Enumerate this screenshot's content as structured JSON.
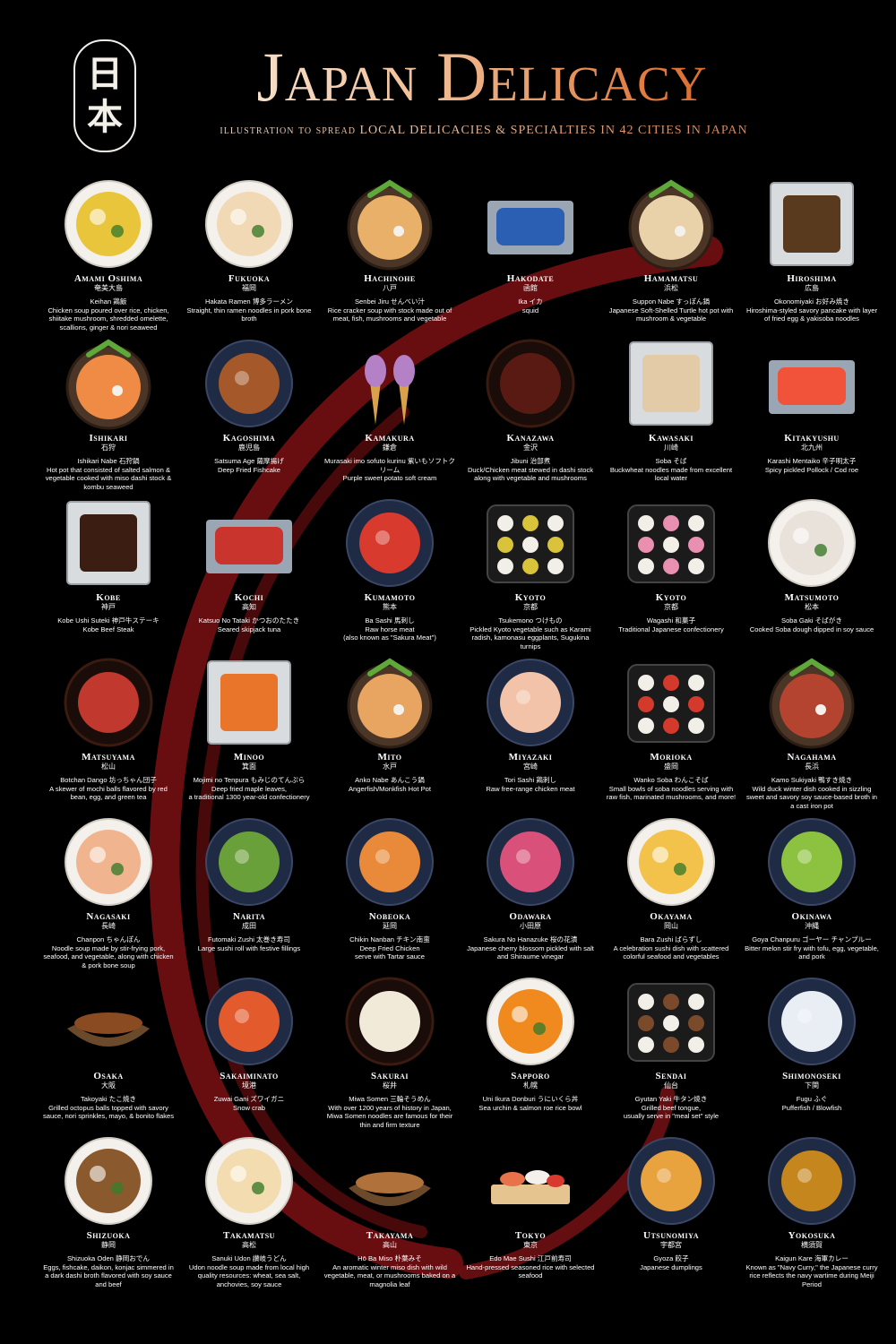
{
  "header": {
    "seal": [
      "日",
      "本"
    ],
    "title": "Japan Delicacy",
    "subtitle": "illustration to spread LOCAL DELICACIES & SPECIALTIES IN 42 CITIES IN JAPAN"
  },
  "colors": {
    "background": "#000000",
    "swirl": "#6e0f12",
    "title_start": "#fbf3ea",
    "title_end": "#c65620"
  },
  "dishes": [
    {
      "city": "Amami Oshima",
      "kanji": "奄美大島",
      "desc": "Keihan 鶏飯\nChicken soup poured over rice, chicken, shiitake mushroom, shredded omelette, scallions, ginger & nori seaweed",
      "style": "bowl",
      "color": "#e8c53a"
    },
    {
      "city": "Fukuoka",
      "kanji": "福岡",
      "desc": "Hakata Ramen 博多ラーメン\nStraight, thin ramen noodles in pork bone broth",
      "style": "bowl",
      "color": "#f2d9b5"
    },
    {
      "city": "Hachinohe",
      "kanji": "八戸",
      "desc": "Senbei Jiru せんべい汁\nRice cracker soup with stock made out of meat, fish, mushrooms and vegetable",
      "style": "pot",
      "color": "#e9b06a"
    },
    {
      "city": "Hakodate",
      "kanji": "函館",
      "desc": "Ika イカ\nsquid",
      "style": "slab",
      "color": "#2b5fb3"
    },
    {
      "city": "Hamamatsu",
      "kanji": "浜松",
      "desc": "Suppon Nabe すっぽん鍋\nJapanese Soft-Shelled Turtle hot pot with mushroom & vegetable",
      "style": "pot",
      "color": "#e9d2a9"
    },
    {
      "city": "Hiroshima",
      "kanji": "広島",
      "desc": "Okonomiyaki お好み焼き\nHiroshima-styled savory pancake with layer of fried egg & yakisoba noodles",
      "style": "square",
      "color": "#5a3a1e"
    },
    {
      "city": "Ishikari",
      "kanji": "石狩",
      "desc": "Ishikari Nabe 石狩鍋\nHot pot that consisted of salted salmon & vegetable cooked with miso dashi stock & kombu seaweed",
      "style": "pot",
      "color": "#f08b45"
    },
    {
      "city": "Kagoshima",
      "kanji": "鹿児島",
      "desc": "Satsuma Age 薩摩揚げ\nDeep Fried Fishcake",
      "style": "plate",
      "color": "#a5582a"
    },
    {
      "city": "Kamakura",
      "kanji": "鎌倉",
      "desc": "Murasaki imo sofuto kurinu 紫いもソフトクリーム\nPurple sweet potato soft cream",
      "style": "cone",
      "color": "#b481c6"
    },
    {
      "city": "Kanazawa",
      "kanji": "金沢",
      "desc": "Jibuni 治部煮\nDuck/Chicken meat stewed in dashi stock along with vegetable and mushrooms",
      "style": "lacquer",
      "color": "#5a1a14"
    },
    {
      "city": "Kawasaki",
      "kanji": "川崎",
      "desc": "Soba そば\nBuckwheat noodles made from excellent local water",
      "style": "square",
      "color": "#e2cba6"
    },
    {
      "city": "Kitakyushu",
      "kanji": "北九州",
      "desc": "Karashi Mentaiko 辛子明太子\nSpicy pickled Pollock / Cod roe",
      "style": "slab",
      "color": "#f0523a"
    },
    {
      "city": "Kobe",
      "kanji": "神戸",
      "desc": "Kobe Ushi Suteki 神戸牛ステーキ\nKobe Beef Steak",
      "style": "square",
      "color": "#3b1d12"
    },
    {
      "city": "Kochi",
      "kanji": "高知",
      "desc": "Katsuo No Tataki かつおのたたき\nSeared skipjack tuna",
      "style": "slab",
      "color": "#c9342d"
    },
    {
      "city": "Kumamoto",
      "kanji": "熊本",
      "desc": "Ba Sashi 馬刺し\nRaw horse meat\n(also known as \"Sakura Meat\")",
      "style": "plate",
      "color": "#d83a2e"
    },
    {
      "city": "Kyoto",
      "kanji": "京都",
      "desc": "Tsukemono つけもの\nPickled Kyoto vegetable such as Karami radish, kamonasu eggplants, Sugukina turnips",
      "style": "tray",
      "color": "#d9c33a"
    },
    {
      "city": "Kyoto",
      "kanji": "京都",
      "desc": "Wagashi 和菓子\nTraditional Japanese confectionery",
      "style": "tray",
      "color": "#e98fb0"
    },
    {
      "city": "Matsumoto",
      "kanji": "松本",
      "desc": "Soba Gaki そばがき\nCooked Soba dough dipped in soy sauce",
      "style": "bowl",
      "color": "#e8e2da"
    },
    {
      "city": "Matsuyama",
      "kanji": "松山",
      "desc": "Botchan Dango 坊っちゃん団子\nA skewer of mochi balls flavored by red bean, egg, and green tea",
      "style": "lacquer",
      "color": "#c0382e"
    },
    {
      "city": "Minoo",
      "kanji": "箕面",
      "desc": "Mojimi no Tenpura もみじのてんぷら\nDeep fried maple leaves,\na traditional 1300 year-old confectionery",
      "style": "square",
      "color": "#e8752a"
    },
    {
      "city": "Mito",
      "kanji": "水戸",
      "desc": "Anko Nabe あんこう鍋\nAngerfish/Monkfish Hot Pot",
      "style": "pot",
      "color": "#e8a562"
    },
    {
      "city": "Miyazaki",
      "kanji": "宮崎",
      "desc": "Tori Sashi 鶏刺し\nRaw free-range chicken meat",
      "style": "plate",
      "color": "#f2c3a8"
    },
    {
      "city": "Morioka",
      "kanji": "盛岡",
      "desc": "Wanko Soba わんこそば\nSmall bowls of soba noodles serving with raw fish, marinated mushrooms, and more!",
      "style": "tray",
      "color": "#d43a2c"
    },
    {
      "city": "Nagahama",
      "kanji": "長浜",
      "desc": "Kamo Sukiyaki 鴨すき焼き\nWild duck winter dish cooked in sizzling sweet and savory soy sauce-based broth in a cast iron pot",
      "style": "pot",
      "color": "#b44430"
    },
    {
      "city": "Nagasaki",
      "kanji": "長崎",
      "desc": "Chanpon ちゃんぽん\nNoodle soup made by stir-frying pork, seafood, and vegetable, along with chicken & pork bone soup",
      "style": "bowl",
      "color": "#f0b58f"
    },
    {
      "city": "Narita",
      "kanji": "成田",
      "desc": "Futomaki Zushi 太巻き寿司\nLarge sushi roll with festive fillings",
      "style": "plate",
      "color": "#6aa03a"
    },
    {
      "city": "Nobeoka",
      "kanji": "延岡",
      "desc": "Chikin Nanban チキン南蛮\nDeep Fried Chicken\nserve with Tartar sauce",
      "style": "plate",
      "color": "#e98a3a"
    },
    {
      "city": "Odawara",
      "kanji": "小田原",
      "desc": "Sakura No Hanazuke 桜の花漬\nJapanese cherry blossom pickled with salt and Shiraume vinegar",
      "style": "plate",
      "color": "#d9517a"
    },
    {
      "city": "Okayama",
      "kanji": "岡山",
      "desc": "Bara Zushi ばらずし\nA celebration sushi dish with scattered colorful seafood and vegetables",
      "style": "bowl",
      "color": "#f2c24a"
    },
    {
      "city": "Okinawa",
      "kanji": "沖縄",
      "desc": "Goya Chanpuru ゴーヤー チャンプルー\nBitter melon stir fry with tofu, egg, vegetable, and pork",
      "style": "plate",
      "color": "#8cc23f"
    },
    {
      "city": "Osaka",
      "kanji": "大阪",
      "desc": "Takoyaki たこ焼き\nGrilled octopus balls topped with savory sauce, nori sprinkles, mayo, & bonito flakes",
      "style": "boat",
      "color": "#8a4b22"
    },
    {
      "city": "Sakaiminato",
      "kanji": "境港",
      "desc": "Zuwai Gani ズワイガニ\nSnow crab",
      "style": "plate",
      "color": "#e35a2c"
    },
    {
      "city": "Sakurai",
      "kanji": "桜井",
      "desc": "Miwa Somen 三輪そうめん\nWith over 1200 years of history in Japan, Miwa Somen noodles are famous for their thin and firm texture",
      "style": "lacquer",
      "color": "#f1ead9"
    },
    {
      "city": "Sapporo",
      "kanji": "札幌",
      "desc": "Uni Ikura Donburi うにいくら丼\nSea urchin & salmon roe rice bowl",
      "style": "bowl",
      "color": "#f08a1e"
    },
    {
      "city": "Sendai",
      "kanji": "仙台",
      "desc": "Gyutan Yaki 牛タン焼き\nGrilled beef tongue,\nusually serve in \"meal set\" style",
      "style": "tray",
      "color": "#7a4a2a"
    },
    {
      "city": "Shimonoseki",
      "kanji": "下関",
      "desc": "Fugu ふぐ\nPufferfish / Blowfish",
      "style": "plate",
      "color": "#e9eef5"
    },
    {
      "city": "Shizuoka",
      "kanji": "静岡",
      "desc": "Shizuoka Oden 静岡おでん\nEggs, fishcake, daikon, konjac simmered in a dark dashi broth flavored with soy sauce and beef",
      "style": "bowl",
      "color": "#8a5a2e"
    },
    {
      "city": "Takamatsu",
      "kanji": "高松",
      "desc": "Sanuki Udon 讃岐うどん\nUdon noodle soup made from local high quality resources: wheat, sea salt, anchovies, soy sauce",
      "style": "bowl",
      "color": "#f2dcb0"
    },
    {
      "city": "Takayama",
      "kanji": "高山",
      "desc": "Hō Ba Miso 朴葉みそ\nAn aromatic winter miso dish with wild vegetable, meat, or mushrooms baked on a magnolia leaf",
      "style": "boat",
      "color": "#b0713a"
    },
    {
      "city": "Tokyo",
      "kanji": "東京",
      "desc": "Edo Mae Sushi 江戸前寿司\nHand-pressed seasoned rice with selected seafood",
      "style": "board",
      "color": "#e8734a"
    },
    {
      "city": "Utsunomiya",
      "kanji": "宇都宮",
      "desc": "Gyoza 餃子\nJapanese dumplings",
      "style": "plate",
      "color": "#e8a23e"
    },
    {
      "city": "Yokosuka",
      "kanji": "横須賀",
      "desc": "Kaigun Kare 海軍カレー\nKnown as \"Navy Curry,\" the Japanese curry rice reflects the navy wartime during Meiji Period",
      "style": "plate",
      "color": "#c5861e"
    }
  ]
}
